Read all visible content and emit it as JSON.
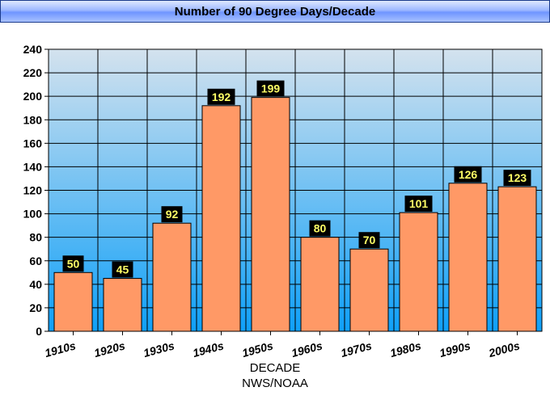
{
  "chart_data": {
    "type": "bar",
    "title": "Number of 90 Degree Days/Decade",
    "categories": [
      "1910s",
      "1920s",
      "1930s",
      "1940s",
      "1950s",
      "1960s",
      "1970s",
      "1980s",
      "1990s",
      "2000s"
    ],
    "values": [
      50,
      45,
      92,
      192,
      199,
      80,
      70,
      101,
      126,
      123
    ],
    "xlabel": "DECADE",
    "source": "NWS/NOAA",
    "ylim": [
      0,
      240
    ],
    "yticks": [
      0,
      20,
      40,
      60,
      80,
      100,
      120,
      140,
      160,
      180,
      200,
      220,
      240
    ],
    "grid": true,
    "bar_color": "#ff9966",
    "label_bg": "#000000",
    "label_color": "#ffff66",
    "plot_gradient": [
      "#d4e2ee",
      "#0fa0f8"
    ]
  }
}
